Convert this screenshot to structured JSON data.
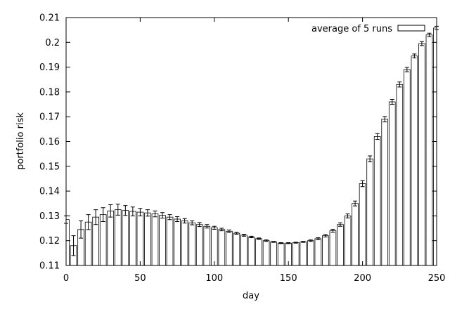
{
  "chart_data": {
    "type": "bar",
    "xlabel": "day",
    "ylabel": "portfolio risk",
    "xlim": [
      0,
      250
    ],
    "ylim": [
      0.11,
      0.21
    ],
    "x_ticks": [
      "0",
      "50",
      "100",
      "150",
      "200",
      "250"
    ],
    "y_ticks": [
      "0.11",
      "0.12",
      "0.13",
      "0.14",
      "0.15",
      "0.16",
      "0.17",
      "0.18",
      "0.19",
      "0.2",
      "0.21"
    ],
    "grid": false,
    "legend_position": "top-right",
    "series": [
      {
        "name": "average of 5 runs",
        "x": [
          0,
          5,
          10,
          15,
          20,
          25,
          30,
          35,
          40,
          45,
          50,
          55,
          60,
          65,
          70,
          75,
          80,
          85,
          90,
          95,
          100,
          105,
          110,
          115,
          120,
          125,
          130,
          135,
          140,
          145,
          150,
          155,
          160,
          165,
          170,
          175,
          180,
          185,
          190,
          195,
          200,
          205,
          210,
          215,
          220,
          225,
          230,
          235,
          240,
          245,
          250
        ],
        "values": [
          0.1285,
          0.118,
          0.1245,
          0.1275,
          0.1295,
          0.1305,
          0.132,
          0.1325,
          0.1322,
          0.1318,
          0.1315,
          0.1312,
          0.1308,
          0.1302,
          0.1295,
          0.1287,
          0.128,
          0.1272,
          0.1265,
          0.1258,
          0.1252,
          0.1245,
          0.1238,
          0.123,
          0.1222,
          0.1215,
          0.1208,
          0.12,
          0.1195,
          0.119,
          0.119,
          0.1192,
          0.1195,
          0.12,
          0.1208,
          0.122,
          0.124,
          0.1265,
          0.13,
          0.135,
          0.143,
          0.153,
          0.162,
          0.169,
          0.176,
          0.183,
          0.189,
          0.1945,
          0.1995,
          0.203,
          0.2058
        ],
        "errors": [
          0.0015,
          0.004,
          0.0035,
          0.003,
          0.003,
          0.0028,
          0.0025,
          0.0022,
          0.002,
          0.0018,
          0.0015,
          0.0013,
          0.0012,
          0.0011,
          0.001,
          0.001,
          0.0009,
          0.0008,
          0.0008,
          0.0007,
          0.0006,
          0.0005,
          0.0005,
          0.0004,
          0.0004,
          0.0003,
          0.0003,
          0.0003,
          0.0002,
          0.0002,
          0.0002,
          0.0002,
          0.0002,
          0.0003,
          0.0004,
          0.0005,
          0.0006,
          0.0007,
          0.0008,
          0.001,
          0.0012,
          0.0012,
          0.0012,
          0.0011,
          0.001,
          0.001,
          0.0009,
          0.0008,
          0.0008,
          0.0007,
          0.0007
        ]
      }
    ]
  }
}
